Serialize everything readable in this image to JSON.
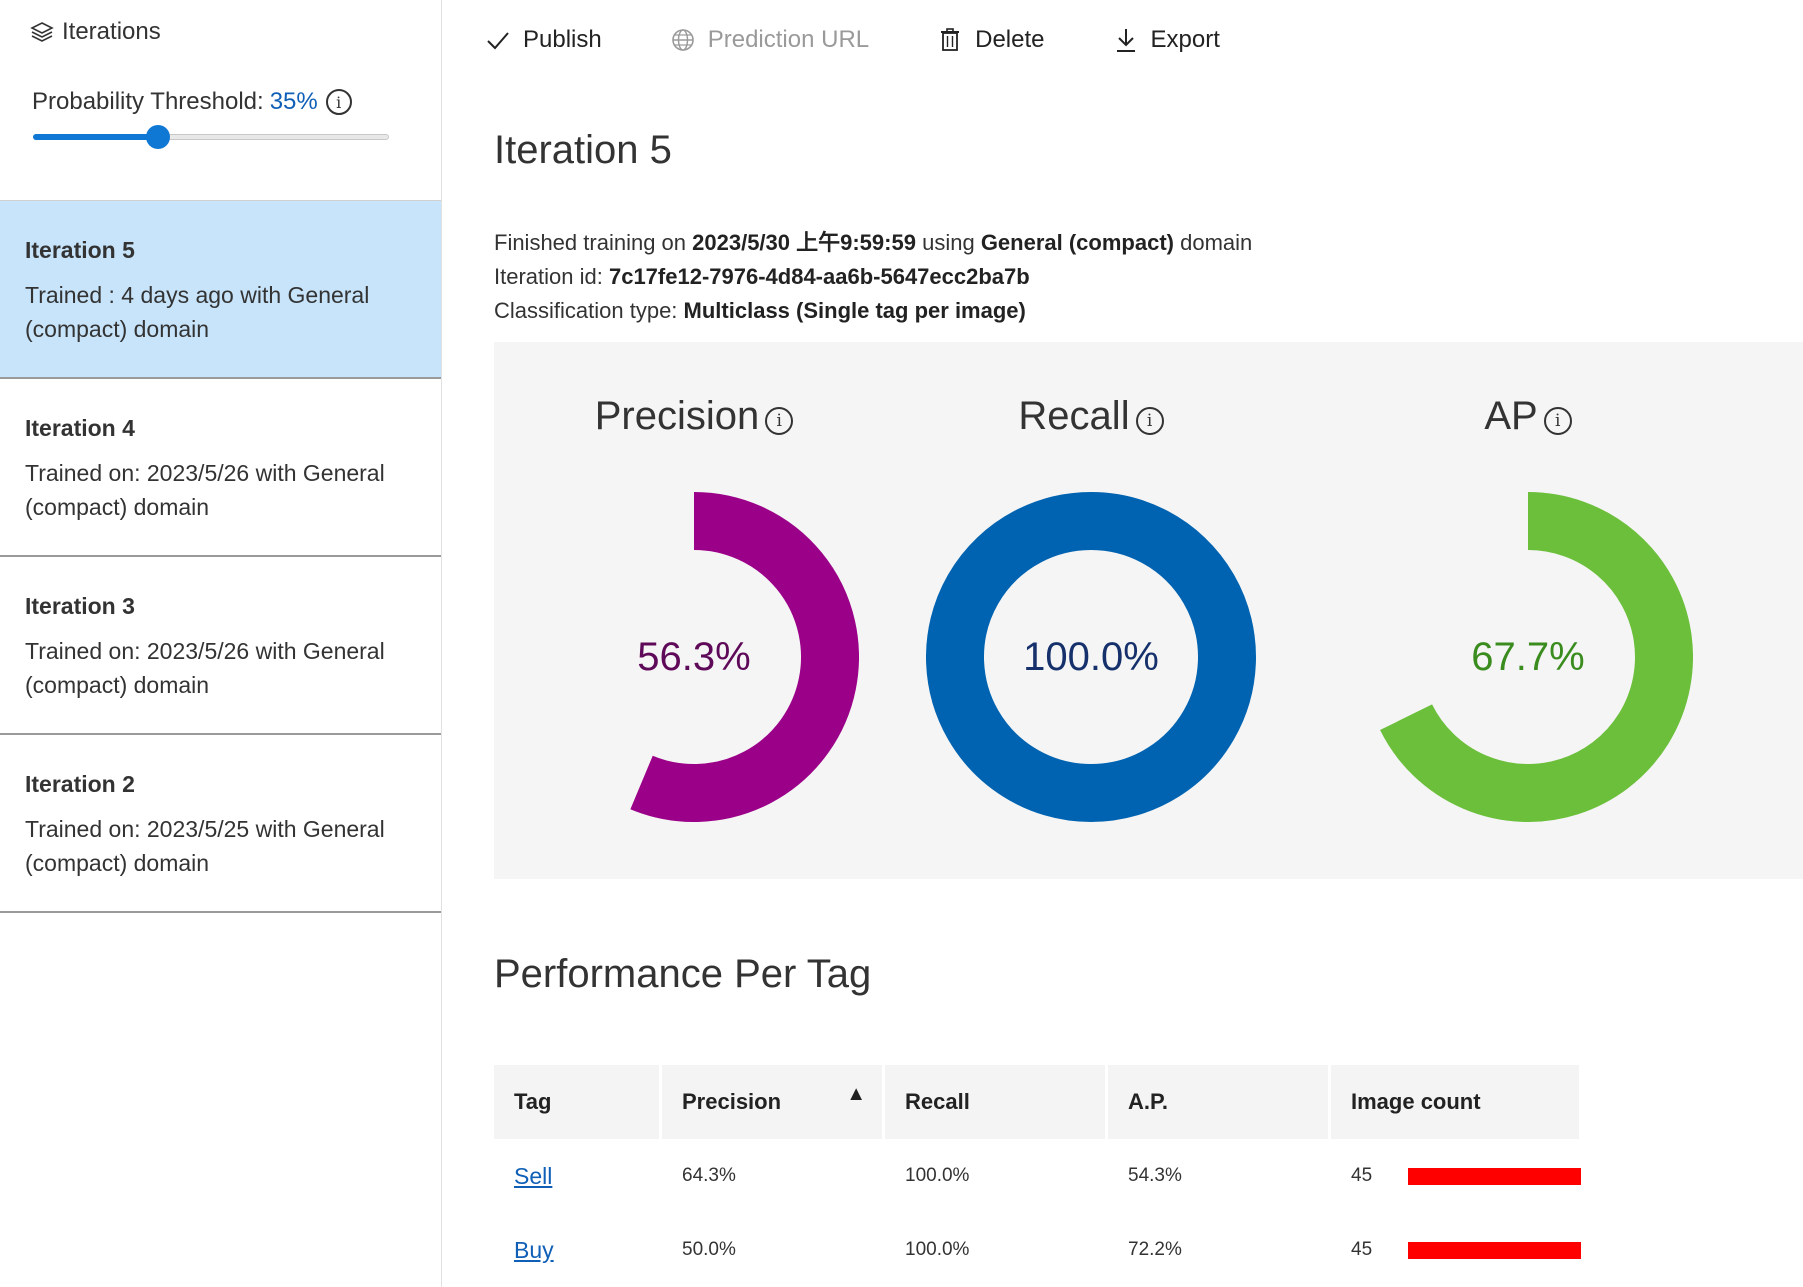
{
  "colors": {
    "accent": "#0f78d4",
    "selected_bg": "#c7e4fa",
    "precision": "#9b0089",
    "precision_text": "#5e0a58",
    "recall": "#0063b1",
    "recall_text": "#15306b",
    "ap": "#6bbf3a",
    "ap_text": "#3a8c1f",
    "count_bar": "#ff0000"
  },
  "sidebar": {
    "header": {
      "icon": "layers-icon",
      "label": "Iterations"
    },
    "threshold": {
      "label": "Probability Threshold:",
      "value_text": "35%",
      "value": 0.35
    },
    "iterations": [
      {
        "title": "Iteration 5",
        "desc": "Trained : 4 days ago with General (compact) domain",
        "selected": true
      },
      {
        "title": "Iteration 4",
        "desc": "Trained on: 2023/5/26 with General (compact) domain",
        "selected": false
      },
      {
        "title": "Iteration 3",
        "desc": "Trained on: 2023/5/26 with General (compact) domain",
        "selected": false
      },
      {
        "title": "Iteration 2",
        "desc": "Trained on: 2023/5/25 with General (compact) domain",
        "selected": false
      }
    ]
  },
  "toolbar": {
    "publish": "Publish",
    "prediction_url": "Prediction URL",
    "delete": "Delete",
    "export": "Export"
  },
  "main": {
    "title": "Iteration 5",
    "meta": {
      "finished_prefix": "Finished training on",
      "finished_date": "2023/5/30 上午9:59:59",
      "using": "using",
      "domain": "General (compact)",
      "domain_suffix": "domain",
      "id_label": "Iteration id:",
      "id_value": "7c17fe12-7976-4d84-aa6b-5647ecc2ba7b",
      "class_label": "Classification type:",
      "class_value": "Multiclass (Single tag per image)"
    },
    "metrics": [
      {
        "label": "Precision",
        "value_text": "56.3%",
        "value": 0.563
      },
      {
        "label": "Recall",
        "value_text": "100.0%",
        "value": 1.0
      },
      {
        "label": "AP",
        "value_text": "67.7%",
        "value": 0.677
      }
    ],
    "section_title": "Performance Per Tag",
    "table": {
      "headers": [
        "Tag",
        "Precision",
        "Recall",
        "A.P.",
        "Image count"
      ],
      "rows": [
        {
          "tag": "Sell",
          "precision": "64.3%",
          "recall": "100.0%",
          "ap": "54.3%",
          "count": "45"
        },
        {
          "tag": "Buy",
          "precision": "50.0%",
          "recall": "100.0%",
          "ap": "72.2%",
          "count": "45"
        }
      ]
    }
  }
}
